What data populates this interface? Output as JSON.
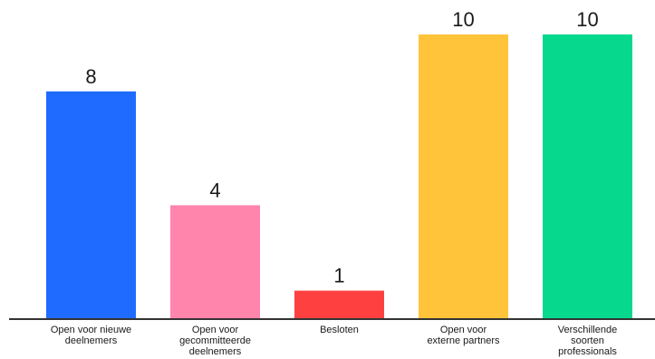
{
  "chart_data": {
    "type": "bar",
    "categories": [
      [
        "Open voor nieuwe",
        "deelnemers"
      ],
      [
        "Open voor",
        "gecommitteerde",
        "deelnemers"
      ],
      [
        "Besloten"
      ],
      [
        "Open voor",
        "externe partners"
      ],
      [
        "Verschillende",
        "soorten",
        "professionals"
      ]
    ],
    "values": [
      8,
      4,
      1,
      10,
      10
    ],
    "value_labels": [
      "8",
      "4",
      "1",
      "10",
      "10"
    ],
    "colors": [
      "#1f6bff",
      "#ff85ad",
      "#ff4040",
      "#ffc43a",
      "#06d98e"
    ],
    "ylim": [
      0,
      10
    ],
    "grid": false,
    "legend": "none"
  }
}
